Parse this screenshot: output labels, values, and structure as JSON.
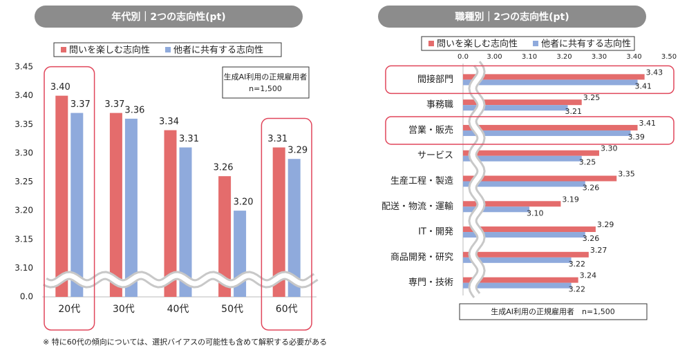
{
  "chart_data": [
    {
      "type": "bar",
      "title": "年代別｜2つの志向性(pt)",
      "categories": [
        "20代",
        "30代",
        "40代",
        "50代",
        "60代"
      ],
      "series": [
        {
          "name": "問いを楽しむ志向性",
          "color": "#e46c6c",
          "values": [
            3.4,
            3.37,
            3.34,
            3.26,
            3.31
          ],
          "value_labels": [
            "3.40",
            "3.37",
            "3.34",
            "3.26",
            "3.31"
          ]
        },
        {
          "name": "他者に共有する志向性",
          "color": "#8faadc",
          "values": [
            3.37,
            3.36,
            3.31,
            3.2,
            3.29
          ],
          "value_labels": [
            "3.37",
            "3.36",
            "3.31",
            "3.20",
            "3.29"
          ]
        }
      ],
      "ylim": [
        0,
        3.45
      ],
      "axis_break": [
        0,
        3.05
      ],
      "yticks": [
        {
          "value": 0,
          "label": "0.0"
        },
        {
          "value": 3.1,
          "label": "3.10"
        },
        3.15,
        {
          "value": 3.2,
          "label": "3.20"
        },
        3.25,
        {
          "value": 3.3,
          "label": "3.30"
        },
        3.35,
        {
          "value": 3.4,
          "label": "3.40"
        },
        3.45
      ],
      "highlight": [
        0,
        4
      ],
      "annotations": [
        "生成AI利用の正規雇用者",
        "n=1,500"
      ],
      "note": "※ 特に60代の傾向については、選択バイアスの可能性も含めて解釈する必要がある"
    },
    {
      "type": "barh",
      "title": "職種別｜2つの志向性(pt)",
      "categories": [
        "間接部門",
        "事務職",
        "営業・販売",
        "サービス",
        "生産工程・製造",
        "配送・物流・運輸",
        "IT・開発",
        "商品開発・研究",
        "専門・技術"
      ],
      "series": [
        {
          "name": "問いを楽しむ志向性",
          "color": "#e46c6c",
          "values": [
            3.43,
            3.25,
            3.41,
            3.3,
            3.35,
            3.19,
            3.29,
            3.27,
            3.24
          ],
          "value_labels": [
            "3.43",
            "3.25",
            "3.41",
            "3.30",
            "3.35",
            "3.19",
            "3.29",
            "3.27",
            "3.24"
          ]
        },
        {
          "name": "他者に共有する志向性",
          "color": "#8faadc",
          "values": [
            3.41,
            3.21,
            3.39,
            3.25,
            3.26,
            3.1,
            3.26,
            3.22,
            3.22
          ],
          "value_labels": [
            "3.41",
            "3.21",
            "3.39",
            "3.25",
            "3.26",
            "3.10",
            "3.26",
            "3.22",
            "3.22"
          ]
        }
      ],
      "xlim": [
        0,
        3.5
      ],
      "axis_break": [
        0,
        2.91
      ],
      "xticks": [
        {
          "value": 0,
          "label": "0.0"
        },
        {
          "value": 3.0,
          "label": "3.00"
        },
        {
          "value": 3.1,
          "label": "3.10"
        },
        {
          "value": 3.2,
          "label": "3.20"
        },
        {
          "value": 3.3,
          "label": "3.30"
        },
        {
          "value": 3.4,
          "label": "3.40"
        },
        {
          "value": 3.5,
          "label": "3.50"
        }
      ],
      "highlight": [
        0,
        2
      ],
      "annotations": [
        "生成AI利用の正規雇用者　n=1,500"
      ]
    }
  ]
}
